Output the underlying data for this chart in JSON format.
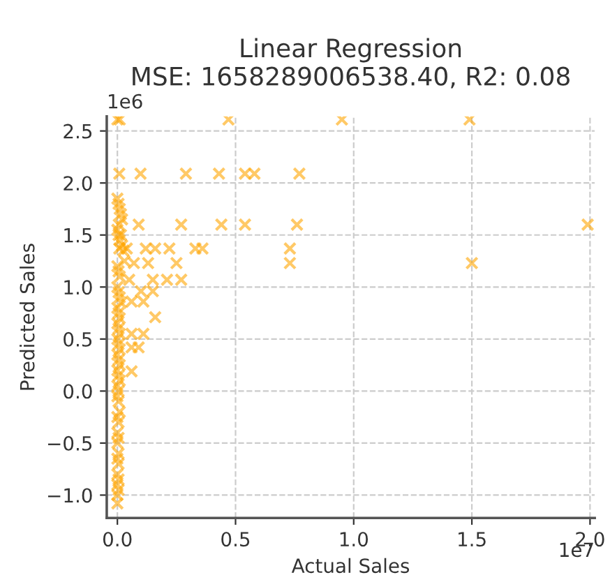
{
  "chart_data": {
    "type": "scatter",
    "title": "Linear Regression\nMSE: 1658289006538.40, R2: 0.08",
    "xlabel": "Actual Sales",
    "ylabel": "Predicted Sales",
    "annotations": [
      "1e6",
      "1e7"
    ],
    "series": [
      {
        "color": "#ffa500",
        "marker": "cross",
        "x": [
          0,
          0.01,
          0.47,
          0.95,
          1.49,
          0.008,
          0.098,
          0.29,
          0.43,
          0.54,
          0.58,
          0.77,
          0.006,
          0.09,
          0.27,
          0.44,
          0.54,
          0.76,
          1.99,
          0.008,
          0.04,
          0.12,
          0.16,
          0.22,
          0.33,
          0.36,
          0.73,
          0.07,
          0.13,
          0.25,
          0.73,
          1.5,
          0.05,
          0.15,
          0.21,
          0.27,
          0.1,
          0.15,
          0.06,
          0.11,
          0.16,
          0.06,
          0.11,
          0.06,
          0.09,
          0.06,
          0,
          0.005,
          0.01,
          0.015,
          0.02,
          0,
          0.005,
          0.01,
          0.015,
          0.02,
          0.025,
          0.03,
          0,
          0.005,
          0.01,
          0,
          0.005,
          0.01,
          0.015,
          0,
          0.005,
          0.01,
          0,
          0.005,
          0.01,
          0,
          0.005,
          0.01,
          0,
          0.005,
          0.01,
          0,
          0.005,
          0.01,
          0,
          0.005,
          0,
          0.005,
          0.01,
          0,
          0.005,
          0,
          0.005,
          0,
          0.005,
          0,
          0.005,
          0,
          0.005,
          0,
          0.005,
          0,
          0
        ],
        "values": [
          2.61,
          2.61,
          2.61,
          2.61,
          2.61,
          2.09,
          2.09,
          2.09,
          2.09,
          2.09,
          2.09,
          2.09,
          1.6,
          1.6,
          1.6,
          1.6,
          1.6,
          1.6,
          1.6,
          1.37,
          1.37,
          1.37,
          1.37,
          1.37,
          1.37,
          1.37,
          1.37,
          1.23,
          1.23,
          1.23,
          1.23,
          1.23,
          1.07,
          1.07,
          1.07,
          1.07,
          0.96,
          0.96,
          0.86,
          0.86,
          0.71,
          0.55,
          0.55,
          0.42,
          0.42,
          0.19,
          1.85,
          1.8,
          1.75,
          1.7,
          1.65,
          1.55,
          1.5,
          1.45,
          1.5,
          1.4,
          1.35,
          1.25,
          1.2,
          1.15,
          1.1,
          1.0,
          0.95,
          0.9,
          0.85,
          0.8,
          0.75,
          0.7,
          0.65,
          0.6,
          0.55,
          0.5,
          0.45,
          0.4,
          0.35,
          0.3,
          0.25,
          0.2,
          0.15,
          0.1,
          0.05,
          0,
          -0.05,
          -0.1,
          -0.2,
          -0.25,
          -0.3,
          -0.4,
          -0.45,
          -0.5,
          -0.6,
          -0.65,
          -0.7,
          -0.8,
          -0.85,
          -0.9,
          -0.95,
          -1.0,
          -1.08
        ]
      }
    ],
    "xlim": [
      -0.045,
      2.02
    ],
    "ylim": [
      -1.22,
      2.64
    ],
    "xticks": [
      {
        "value": 0,
        "label": "0.0"
      },
      0.5,
      {
        "value": 1,
        "label": "1.0"
      },
      1.5,
      {
        "value": 2,
        "label": "2.0"
      }
    ],
    "yticks": [
      {
        "value": -1,
        "label": "−1.0"
      },
      {
        "value": -0.5,
        "label": "−0.5"
      },
      {
        "value": 0,
        "label": "0.0"
      },
      0.5,
      {
        "value": 1,
        "label": "1.0"
      },
      1.5,
      {
        "value": 2,
        "label": "2.0"
      },
      2.5
    ],
    "grid": true,
    "legend": false
  }
}
